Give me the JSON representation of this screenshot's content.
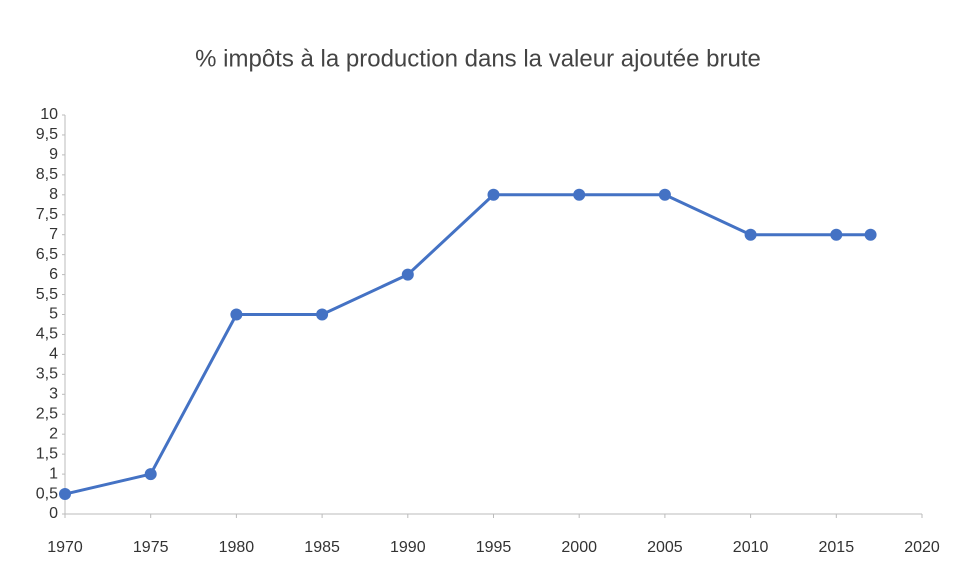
{
  "chart_data": {
    "type": "line",
    "title": "% impôts à la production dans la valeur ajoutée brute",
    "x": [
      1970,
      1975,
      1980,
      1985,
      1990,
      1995,
      2000,
      2005,
      2010,
      2015,
      2017
    ],
    "series": [
      {
        "color": "#4472c4",
        "values": [
          0.5,
          1,
          5,
          5,
          6,
          8,
          8,
          8,
          7,
          7,
          7
        ]
      }
    ],
    "xlim": [
      1970,
      2020
    ],
    "xticks": [
      1970,
      1975,
      1980,
      1985,
      1990,
      1995,
      2000,
      2005,
      2010,
      2015,
      2020
    ],
    "ylim": [
      0,
      10
    ],
    "yticks": [
      0,
      {
        "value": 0.5,
        "label": "0,5"
      },
      1,
      {
        "value": 1.5,
        "label": "1,5"
      },
      2,
      {
        "value": 2.5,
        "label": "2,5"
      },
      3,
      {
        "value": 3.5,
        "label": "3,5"
      },
      4,
      {
        "value": 4.5,
        "label": "4,5"
      },
      5,
      {
        "value": 5.5,
        "label": "5,5"
      },
      6,
      {
        "value": 6.5,
        "label": "6,5"
      },
      7,
      {
        "value": 7.5,
        "label": "7,5"
      },
      8,
      {
        "value": 8.5,
        "label": "8,5"
      },
      9,
      {
        "value": 9.5,
        "label": "9,5"
      },
      10
    ],
    "grid": false
  }
}
